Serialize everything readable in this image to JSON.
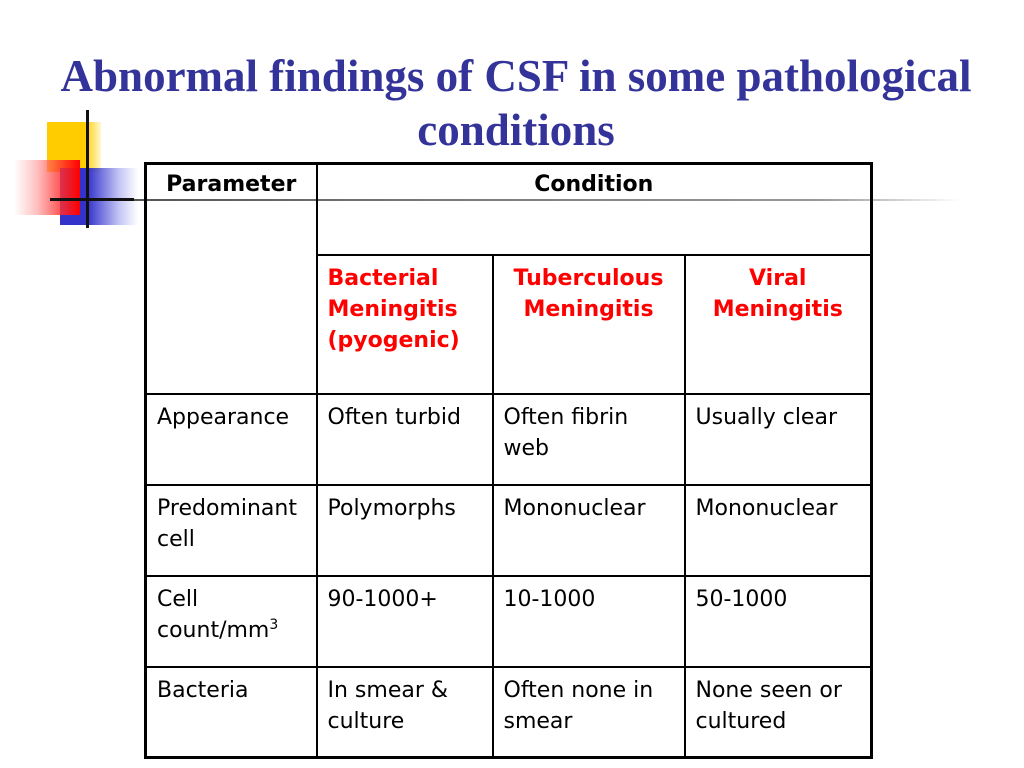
{
  "slide": {
    "title": "Abnormal findings of CSF in some pathological conditions"
  },
  "table": {
    "header": {
      "parameter": "Parameter",
      "condition": "Condition"
    },
    "conditions": [
      "Bacterial Meningitis (pyogenic)",
      "Tuberculous Meningitis",
      "Viral Meningitis"
    ],
    "rows": [
      {
        "parameter": "Appearance",
        "values": [
          "Often turbid",
          "Often fibrin web",
          "Usually clear"
        ]
      },
      {
        "parameter": "Predominant cell",
        "values": [
          "Polymorphs",
          "Mononuclear",
          "Mononuclear"
        ]
      },
      {
        "parameter": "Cell",
        "parameter_cont": "count/mm",
        "parameter_sup": "3",
        "values": [
          "90-1000+",
          "10-1000",
          "50-1000"
        ]
      },
      {
        "parameter": "Bacteria",
        "values": [
          "In smear & culture",
          "Often none in smear",
          "None seen or cultured"
        ]
      }
    ]
  },
  "colors": {
    "title": "#333399",
    "condition_heading": "#ff0000",
    "text": "#000000",
    "table_border": "#000000",
    "accent_yellow": "#ffcc00",
    "accent_red": "#ff0000",
    "accent_blue": "#3333cc"
  }
}
